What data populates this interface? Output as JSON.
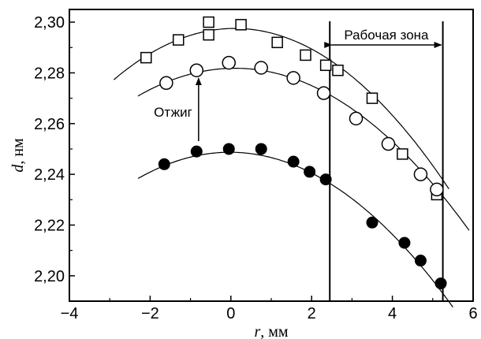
{
  "chart_data": {
    "type": "scatter",
    "title": "",
    "xlabel_var": "r",
    "xlabel_unit": ", мм",
    "ylabel_var": "d",
    "ylabel_unit": ", нм",
    "xlim": [
      -4,
      6
    ],
    "ylim": [
      2.19,
      2.305
    ],
    "x_ticks": [
      -4,
      -2,
      0,
      2,
      4,
      6
    ],
    "x_tick_labels": [
      "−4",
      "−2",
      "0",
      "2",
      "4",
      "6"
    ],
    "y_ticks": [
      2.2,
      2.22,
      2.24,
      2.26,
      2.28,
      2.3
    ],
    "y_tick_labels": [
      "2,20",
      "2,22",
      "2,24",
      "2,26",
      "2,28",
      "2,30"
    ],
    "grid": false,
    "series": [
      {
        "marker": "square",
        "points": [
          {
            "x": -2.1,
            "y": 2.286
          },
          {
            "x": -1.3,
            "y": 2.293
          },
          {
            "x": -0.55,
            "y": 2.3
          },
          {
            "x": -0.55,
            "y": 2.295
          },
          {
            "x": 0.25,
            "y": 2.299
          },
          {
            "x": 1.15,
            "y": 2.292
          },
          {
            "x": 1.85,
            "y": 2.287
          },
          {
            "x": 2.35,
            "y": 2.283
          },
          {
            "x": 2.65,
            "y": 2.281
          },
          {
            "x": 3.5,
            "y": 2.27
          },
          {
            "x": 4.25,
            "y": 2.248
          },
          {
            "x": 5.1,
            "y": 2.232
          }
        ],
        "fit": {
          "a": 2.2975,
          "b": 0.00044,
          "c": 0.00225,
          "x_from": -2.9,
          "x_to": 5.4
        }
      },
      {
        "marker": "open-circle",
        "points": [
          {
            "x": -1.6,
            "y": 2.276
          },
          {
            "x": -0.85,
            "y": 2.281
          },
          {
            "x": -0.05,
            "y": 2.284
          },
          {
            "x": 0.75,
            "y": 2.282
          },
          {
            "x": 1.55,
            "y": 2.278
          },
          {
            "x": 2.3,
            "y": 2.272
          },
          {
            "x": 3.1,
            "y": 2.262
          },
          {
            "x": 3.9,
            "y": 2.252
          },
          {
            "x": 4.7,
            "y": 2.24
          },
          {
            "x": 5.1,
            "y": 2.234
          }
        ],
        "fit": {
          "a": 2.2818,
          "b": 0.00038,
          "c": 0.0019,
          "x_from": -2.3,
          "x_to": 5.9
        }
      },
      {
        "marker": "filled-circle",
        "points": [
          {
            "x": -1.65,
            "y": 2.244
          },
          {
            "x": -0.85,
            "y": 2.249
          },
          {
            "x": -0.05,
            "y": 2.25
          },
          {
            "x": 0.75,
            "y": 2.25
          },
          {
            "x": 1.55,
            "y": 2.245
          },
          {
            "x": 1.95,
            "y": 2.241
          },
          {
            "x": 2.35,
            "y": 2.238
          },
          {
            "x": 3.5,
            "y": 2.221
          },
          {
            "x": 4.3,
            "y": 2.213
          },
          {
            "x": 4.7,
            "y": 2.206
          },
          {
            "x": 5.2,
            "y": 2.197
          }
        ],
        "fit": {
          "a": 2.2487,
          "b": -0.0001,
          "c": 0.002,
          "x_from": -2.3,
          "x_to": 5.5
        }
      }
    ],
    "vertical_lines_x": [
      2.45,
      5.25
    ],
    "annotations": {
      "work_zone": {
        "text": "Рабочая зона",
        "x_from": 2.45,
        "x_to": 5.25
      },
      "anneal": {
        "text": "Отжиг",
        "arrow_x": -0.8,
        "arrow_y_from": 2.25,
        "arrow_y_to": 2.281
      }
    }
  }
}
